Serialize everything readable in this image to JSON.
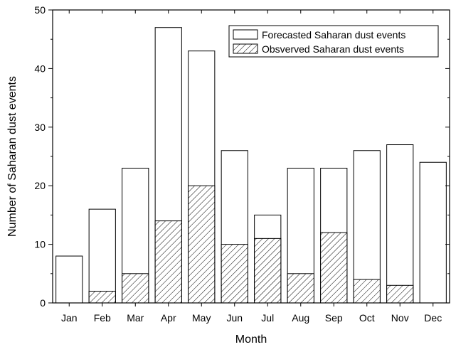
{
  "chart_data": {
    "type": "bar",
    "title": "",
    "xlabel": "Month",
    "ylabel": "Number of Saharan dust events",
    "ylim": [
      0,
      50
    ],
    "yticks": [
      0,
      10,
      20,
      30,
      40,
      50
    ],
    "categories": [
      "Jan",
      "Feb",
      "Mar",
      "Apr",
      "May",
      "Jun",
      "Jul",
      "Aug",
      "Sep",
      "Oct",
      "Nov",
      "Dec"
    ],
    "series": [
      {
        "name": "Forecasted Saharan dust events",
        "values": [
          8,
          16,
          23,
          47,
          43,
          26,
          15,
          23,
          23,
          26,
          27,
          24
        ],
        "fill": "#ffffff"
      },
      {
        "name": "Obsverved Saharan dust events",
        "values": [
          0,
          2,
          5,
          14,
          20,
          10,
          11,
          5,
          12,
          4,
          3,
          0
        ],
        "fill": "hatch"
      }
    ],
    "overlay": true,
    "legend_position": "top-right",
    "grid": false
  }
}
